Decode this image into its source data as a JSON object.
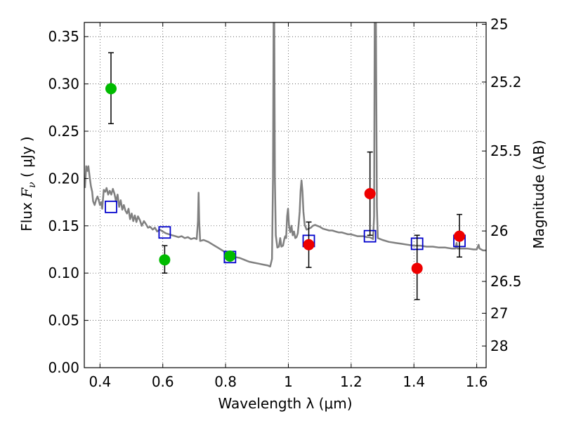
{
  "chart_data": {
    "type": "scatter",
    "xlabel": "Wavelength  λ (μm)",
    "ylabel": "Flux  F_ν  ( μJy )",
    "ylabel_parts": {
      "prefix": "Flux  ",
      "symbol": "F",
      "subscript": "ν",
      "suffix": "  ( μJy )"
    },
    "y2label": "Magnitude (AB)",
    "xlim": [
      0.35,
      1.63
    ],
    "ylim": [
      0.0,
      0.365
    ],
    "grid": true,
    "x_ticks": [
      0.4,
      0.6,
      0.8,
      1.0,
      1.2,
      1.4,
      1.6
    ],
    "x_tick_labels": [
      "0.4",
      "0.6",
      "0.8",
      "1",
      "1.2",
      "1.4",
      "1.6"
    ],
    "y_ticks": [
      0.0,
      0.05,
      0.1,
      0.15,
      0.2,
      0.25,
      0.3,
      0.35
    ],
    "y_tick_labels": [
      "0.00",
      "0.05",
      "0.10",
      "0.15",
      "0.20",
      "0.25",
      "0.30",
      "0.35"
    ],
    "mag_ticks": [
      {
        "label": "25",
        "mag": 25
      },
      {
        "label": "25.2",
        "mag": 25.2
      },
      {
        "label": "25.5",
        "mag": 25.5
      },
      {
        "label": "26",
        "mag": 26
      },
      {
        "label": "26.5",
        "mag": 26.5
      },
      {
        "label": "27",
        "mag": 27
      },
      {
        "label": "28",
        "mag": 28
      }
    ],
    "series": [
      {
        "type": "model_line",
        "color": "#808080",
        "points": [
          [
            0.352,
            0.19
          ],
          [
            0.356,
            0.213
          ],
          [
            0.36,
            0.208
          ],
          [
            0.363,
            0.213
          ],
          [
            0.367,
            0.202
          ],
          [
            0.371,
            0.192
          ],
          [
            0.375,
            0.186
          ],
          [
            0.378,
            0.176
          ],
          [
            0.383,
            0.172
          ],
          [
            0.388,
            0.178
          ],
          [
            0.392,
            0.181
          ],
          [
            0.396,
            0.177
          ],
          [
            0.4,
            0.172
          ],
          [
            0.404,
            0.175
          ],
          [
            0.407,
            0.168
          ],
          [
            0.412,
            0.188
          ],
          [
            0.417,
            0.186
          ],
          [
            0.421,
            0.19
          ],
          [
            0.426,
            0.183
          ],
          [
            0.431,
            0.187
          ],
          [
            0.436,
            0.183
          ],
          [
            0.441,
            0.189
          ],
          [
            0.446,
            0.184
          ],
          [
            0.451,
            0.176
          ],
          [
            0.456,
            0.183
          ],
          [
            0.461,
            0.17
          ],
          [
            0.466,
            0.177
          ],
          [
            0.471,
            0.167
          ],
          [
            0.476,
            0.172
          ],
          [
            0.481,
            0.166
          ],
          [
            0.486,
            0.163
          ],
          [
            0.491,
            0.168
          ],
          [
            0.496,
            0.157
          ],
          [
            0.501,
            0.163
          ],
          [
            0.506,
            0.155
          ],
          [
            0.511,
            0.161
          ],
          [
            0.516,
            0.154
          ],
          [
            0.521,
            0.16
          ],
          [
            0.527,
            0.156
          ],
          [
            0.533,
            0.15
          ],
          [
            0.54,
            0.155
          ],
          [
            0.546,
            0.152
          ],
          [
            0.553,
            0.148
          ],
          [
            0.56,
            0.149
          ],
          [
            0.568,
            0.146
          ],
          [
            0.575,
            0.148
          ],
          [
            0.582,
            0.144
          ],
          [
            0.59,
            0.146
          ],
          [
            0.6,
            0.144
          ],
          [
            0.61,
            0.142
          ],
          [
            0.62,
            0.141
          ],
          [
            0.63,
            0.14
          ],
          [
            0.64,
            0.139
          ],
          [
            0.65,
            0.138
          ],
          [
            0.66,
            0.139
          ],
          [
            0.67,
            0.137
          ],
          [
            0.68,
            0.138
          ],
          [
            0.69,
            0.136
          ],
          [
            0.7,
            0.137
          ],
          [
            0.708,
            0.136
          ],
          [
            0.712,
            0.155
          ],
          [
            0.714,
            0.185
          ],
          [
            0.716,
            0.155
          ],
          [
            0.719,
            0.134
          ],
          [
            0.73,
            0.135
          ],
          [
            0.745,
            0.133
          ],
          [
            0.76,
            0.13
          ],
          [
            0.775,
            0.127
          ],
          [
            0.79,
            0.124
          ],
          [
            0.805,
            0.12
          ],
          [
            0.815,
            0.117
          ],
          [
            0.83,
            0.117
          ],
          [
            0.845,
            0.116
          ],
          [
            0.86,
            0.114
          ],
          [
            0.875,
            0.112
          ],
          [
            0.89,
            0.111
          ],
          [
            0.905,
            0.11
          ],
          [
            0.92,
            0.109
          ],
          [
            0.935,
            0.108
          ],
          [
            0.942,
            0.107
          ],
          [
            0.948,
            0.115
          ],
          [
            0.951,
            0.2
          ],
          [
            0.953,
            0.37
          ],
          [
            0.955,
            0.37
          ],
          [
            0.957,
            0.2
          ],
          [
            0.96,
            0.14
          ],
          [
            0.965,
            0.127
          ],
          [
            0.97,
            0.128
          ],
          [
            0.974,
            0.137
          ],
          [
            0.978,
            0.128
          ],
          [
            0.983,
            0.129
          ],
          [
            0.987,
            0.136
          ],
          [
            0.99,
            0.139
          ],
          [
            0.993,
            0.137
          ],
          [
            0.996,
            0.16
          ],
          [
            0.999,
            0.168
          ],
          [
            1.002,
            0.15
          ],
          [
            1.006,
            0.143
          ],
          [
            1.01,
            0.15
          ],
          [
            1.014,
            0.14
          ],
          [
            1.018,
            0.144
          ],
          [
            1.022,
            0.137
          ],
          [
            1.026,
            0.138
          ],
          [
            1.03,
            0.142
          ],
          [
            1.033,
            0.152
          ],
          [
            1.036,
            0.165
          ],
          [
            1.039,
            0.187
          ],
          [
            1.042,
            0.198
          ],
          [
            1.045,
            0.186
          ],
          [
            1.048,
            0.165
          ],
          [
            1.052,
            0.151
          ],
          [
            1.058,
            0.146
          ],
          [
            1.065,
            0.147
          ],
          [
            1.072,
            0.148
          ],
          [
            1.078,
            0.15
          ],
          [
            1.085,
            0.151
          ],
          [
            1.092,
            0.15
          ],
          [
            1.1,
            0.149
          ],
          [
            1.11,
            0.147
          ],
          [
            1.12,
            0.146
          ],
          [
            1.13,
            0.145
          ],
          [
            1.14,
            0.145
          ],
          [
            1.15,
            0.144
          ],
          [
            1.16,
            0.143
          ],
          [
            1.17,
            0.143
          ],
          [
            1.18,
            0.142
          ],
          [
            1.19,
            0.141
          ],
          [
            1.2,
            0.141
          ],
          [
            1.21,
            0.14
          ],
          [
            1.22,
            0.139
          ],
          [
            1.23,
            0.139
          ],
          [
            1.24,
            0.139
          ],
          [
            1.25,
            0.138
          ],
          [
            1.258,
            0.138
          ],
          [
            1.265,
            0.137
          ],
          [
            1.27,
            0.136
          ],
          [
            1.273,
            0.16
          ],
          [
            1.275,
            0.37
          ],
          [
            1.279,
            0.37
          ],
          [
            1.282,
            0.17
          ],
          [
            1.285,
            0.137
          ],
          [
            1.3,
            0.135
          ],
          [
            1.32,
            0.133
          ],
          [
            1.34,
            0.132
          ],
          [
            1.36,
            0.131
          ],
          [
            1.38,
            0.13
          ],
          [
            1.4,
            0.129
          ],
          [
            1.42,
            0.129
          ],
          [
            1.44,
            0.128
          ],
          [
            1.46,
            0.128
          ],
          [
            1.48,
            0.127
          ],
          [
            1.5,
            0.127
          ],
          [
            1.52,
            0.126
          ],
          [
            1.532,
            0.126
          ],
          [
            1.536,
            0.132
          ],
          [
            1.538,
            0.126
          ],
          [
            1.55,
            0.126
          ],
          [
            1.57,
            0.126
          ],
          [
            1.59,
            0.125
          ],
          [
            1.6,
            0.125
          ],
          [
            1.606,
            0.13
          ],
          [
            1.609,
            0.126
          ],
          [
            1.62,
            0.124
          ],
          [
            1.63,
            0.124
          ]
        ]
      },
      {
        "type": "model_photometry",
        "marker": "open-square",
        "color": "#0000cc",
        "points": [
          {
            "x": 0.435,
            "y": 0.17
          },
          {
            "x": 0.606,
            "y": 0.143
          },
          {
            "x": 0.814,
            "y": 0.117
          },
          {
            "x": 1.065,
            "y": 0.134
          },
          {
            "x": 1.26,
            "y": 0.139
          },
          {
            "x": 1.41,
            "y": 0.131
          },
          {
            "x": 1.545,
            "y": 0.134
          }
        ]
      },
      {
        "type": "observed_optical",
        "marker": "filled-circle",
        "color": "#00bb00",
        "points": [
          {
            "x": 0.435,
            "y": 0.295,
            "ylo": 0.258,
            "yhi": 0.333
          },
          {
            "x": 0.606,
            "y": 0.114,
            "ylo": 0.1,
            "yhi": 0.129
          },
          {
            "x": 0.814,
            "y": 0.118,
            "ylo": 0.118,
            "yhi": 0.118
          }
        ]
      },
      {
        "type": "observed_infrared",
        "marker": "filled-circle",
        "color": "#ee0000",
        "points": [
          {
            "x": 1.065,
            "y": 0.13,
            "ylo": 0.106,
            "yhi": 0.154
          },
          {
            "x": 1.26,
            "y": 0.184,
            "ylo": 0.14,
            "yhi": 0.228
          },
          {
            "x": 1.41,
            "y": 0.105,
            "ylo": 0.072,
            "yhi": 0.14
          },
          {
            "x": 1.545,
            "y": 0.139,
            "ylo": 0.117,
            "yhi": 0.162
          }
        ]
      }
    ]
  }
}
